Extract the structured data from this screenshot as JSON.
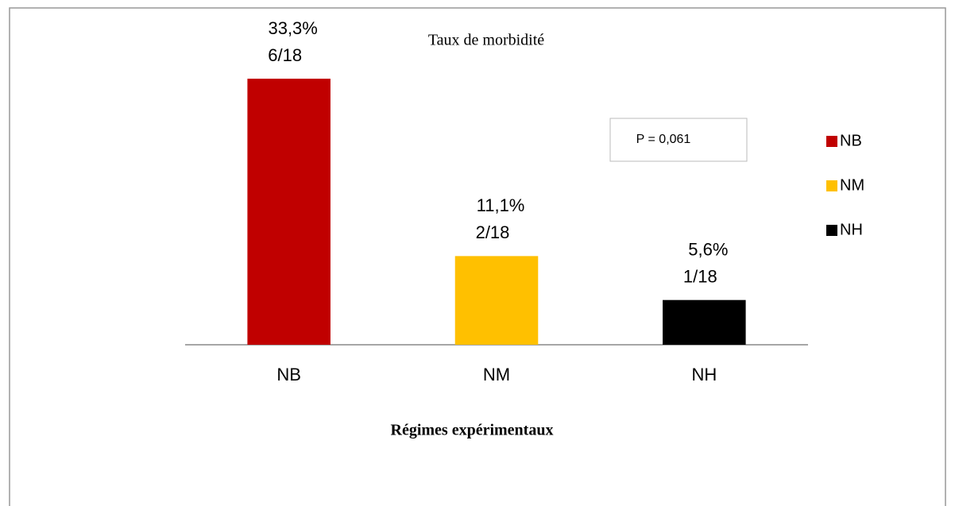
{
  "chart_data": {
    "type": "bar",
    "title": "Taux de morbidité",
    "x_label": "Régimes expérimentaux",
    "categories": [
      "NB",
      "NM",
      "NH"
    ],
    "values": [
      33.3,
      11.1,
      5.6
    ],
    "value_labels": [
      "33,3%",
      "11,1%",
      "5,6%"
    ],
    "counts": [
      "6/18",
      "2/18",
      "1/18"
    ],
    "colors": [
      "#c00000",
      "#ffc000",
      "#000000"
    ],
    "ylim": [
      0,
      35
    ],
    "annotation": "P = 0,061",
    "legend": "right"
  }
}
